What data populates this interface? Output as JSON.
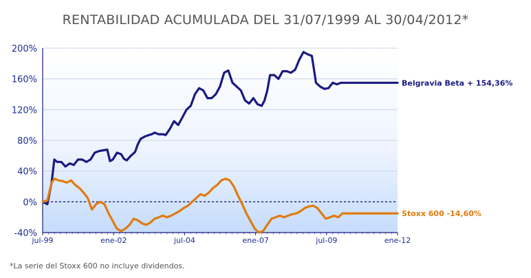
{
  "chart_data": {
    "type": "line",
    "title": "RENTABILIDAD ACUMULADA DEL 31/07/1999 AL 30/04/2012*",
    "xlabel": "",
    "ylabel": "",
    "ylim": [
      -40,
      200
    ],
    "yticks": [
      "200%",
      "160%",
      "120%",
      "80%",
      "40%",
      "0%",
      "-40%"
    ],
    "xticks": [
      "jul-99",
      "ene-02",
      "jul-04",
      "ene-07",
      "jul-09",
      "ene-12"
    ],
    "xlim": [
      1999.58,
      2012.33
    ],
    "grid": true,
    "series": [
      {
        "name": "Belgravia Beta + 154,36%",
        "color": "#1a1a80",
        "x": [
          1999.58,
          1999.75,
          1999.9,
          2000.0,
          2000.1,
          2000.25,
          2000.4,
          2000.55,
          2000.7,
          2000.85,
          2001.0,
          2001.15,
          2001.3,
          2001.45,
          2001.6,
          2001.75,
          2001.9,
          2002.0,
          2002.1,
          2002.25,
          2002.4,
          2002.5,
          2002.6,
          2002.75,
          2002.9,
          2003.0,
          2003.1,
          2003.25,
          2003.4,
          2003.5,
          2003.6,
          2003.75,
          2003.9,
          2004.0,
          2004.15,
          2004.3,
          2004.45,
          2004.6,
          2004.75,
          2004.9,
          2005.05,
          2005.2,
          2005.35,
          2005.5,
          2005.65,
          2005.8,
          2005.95,
          2006.1,
          2006.25,
          2006.4,
          2006.55,
          2006.7,
          2006.85,
          2007.0,
          2007.15,
          2007.3,
          2007.45,
          2007.55,
          2007.65,
          2007.75,
          2007.9,
          2008.05,
          2008.2,
          2008.35,
          2008.5,
          2008.65,
          2008.8,
          2008.95,
          2009.1,
          2009.25,
          2009.4,
          2009.55,
          2009.7,
          2009.85,
          2010.0,
          2010.15,
          2010.3,
          2010.45,
          2010.6,
          2010.75,
          2010.9,
          2011.05,
          2011.2,
          2011.35,
          2011.5,
          2011.6,
          2011.7,
          2011.8,
          2011.95,
          2012.1,
          2012.2,
          2012.33
        ],
        "y": [
          0,
          -3,
          25,
          55,
          52,
          52,
          46,
          50,
          48,
          55,
          55,
          52,
          55,
          64,
          66,
          67,
          68,
          53,
          55,
          64,
          62,
          56,
          54,
          60,
          65,
          75,
          82,
          85,
          87,
          88,
          90,
          88,
          88,
          87,
          95,
          105,
          100,
          110,
          120,
          125,
          140,
          148,
          145,
          135,
          135,
          140,
          150,
          168,
          171,
          155,
          150,
          145,
          132,
          128,
          135,
          127,
          125,
          132,
          145,
          165,
          165,
          160,
          170,
          170,
          168,
          172,
          185,
          195,
          192,
          190,
          155,
          150,
          147,
          148,
          155,
          153,
          155,
          155,
          155,
          155,
          155,
          155,
          155,
          155,
          155,
          155,
          155,
          155,
          155,
          155,
          155,
          155
        ],
        "end_label": "Belgravia Beta + 154,36%"
      },
      {
        "name": "Stoxx 600 -14,60%",
        "color": "#e07b10",
        "x": [
          1999.58,
          1999.75,
          1999.9,
          2000.0,
          2000.15,
          2000.3,
          2000.45,
          2000.6,
          2000.75,
          2000.9,
          2001.05,
          2001.2,
          2001.35,
          2001.5,
          2001.65,
          2001.8,
          2001.95,
          2002.1,
          2002.25,
          2002.4,
          2002.55,
          2002.7,
          2002.85,
          2003.0,
          2003.15,
          2003.3,
          2003.45,
          2003.6,
          2003.75,
          2003.9,
          2004.05,
          2004.2,
          2004.35,
          2004.5,
          2004.65,
          2004.8,
          2004.95,
          2005.1,
          2005.25,
          2005.4,
          2005.55,
          2005.7,
          2005.85,
          2006.0,
          2006.15,
          2006.3,
          2006.45,
          2006.6,
          2006.75,
          2006.9,
          2007.05,
          2007.2,
          2007.35,
          2007.5,
          2007.65,
          2007.8,
          2007.95,
          2008.1,
          2008.25,
          2008.4,
          2008.55,
          2008.7,
          2008.85,
          2009.0,
          2009.15,
          2009.3,
          2009.45,
          2009.6,
          2009.75,
          2009.9,
          2010.05,
          2010.2,
          2010.35,
          2010.5,
          2010.65,
          2010.8,
          2010.95,
          2011.1,
          2011.25,
          2011.4,
          2011.55,
          2011.7,
          2011.85,
          2012.0,
          2012.15,
          2012.33
        ],
        "y": [
          0,
          2,
          25,
          30,
          28,
          27,
          25,
          28,
          22,
          18,
          12,
          5,
          -10,
          -3,
          0,
          -3,
          -15,
          -25,
          -35,
          -38,
          -35,
          -30,
          -22,
          -24,
          -28,
          -30,
          -27,
          -22,
          -20,
          -18,
          -20,
          -18,
          -15,
          -12,
          -8,
          -5,
          0,
          5,
          10,
          8,
          12,
          18,
          22,
          28,
          30,
          28,
          20,
          8,
          -3,
          -15,
          -25,
          -35,
          -40,
          -38,
          -30,
          -22,
          -20,
          -18,
          -20,
          -18,
          -16,
          -15,
          -12,
          -8,
          -6,
          -5,
          -8,
          -15,
          -22,
          -20,
          -18,
          -20,
          -15,
          -15,
          -15,
          -15,
          -15,
          -15,
          -15,
          -15,
          -15,
          -15,
          -15,
          -15,
          -15,
          -15
        ],
        "end_label": "Stoxx 600 -14,60%"
      }
    ]
  },
  "footnote": "*La serie del Stoxx 600 no incluye dividendos."
}
